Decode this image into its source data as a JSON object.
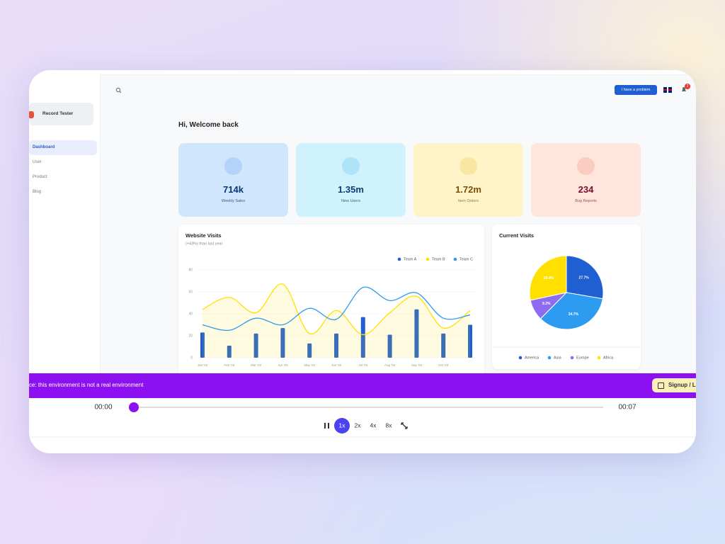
{
  "sidebar": {
    "user": "Record Tester",
    "nav": [
      "Dashboard",
      "User",
      "Product",
      "Blog"
    ]
  },
  "header": {
    "button": "I have a problem",
    "badge": "2"
  },
  "greeting": "Hi, Welcome back",
  "cards": [
    {
      "value": "714k",
      "label": "Weekly Sales"
    },
    {
      "value": "1.35m",
      "label": "New Users"
    },
    {
      "value": "1.72m",
      "label": "Item Orders"
    },
    {
      "value": "234",
      "label": "Bug Reports"
    }
  ],
  "chart_data": [
    {
      "type": "combo",
      "title": "Website Visits",
      "subtitle": "(+43%) than last year",
      "categories": [
        "Jan '03",
        "Feb '03",
        "Mar '03",
        "Apr '03",
        "May '03",
        "Jun '03",
        "Jul '03",
        "Aug '03",
        "Sep '03",
        "Oct '03",
        null
      ],
      "series": [
        {
          "name": "Team A",
          "kind": "bar",
          "color": "#1f5fd1",
          "values": [
            23,
            11,
            22,
            27,
            13,
            22,
            37,
            21,
            44,
            22,
            30
          ]
        },
        {
          "name": "Team B",
          "kind": "area",
          "color": "#ffe000",
          "values": [
            44,
            55,
            41,
            67,
            22,
            43,
            21,
            41,
            56,
            27,
            43
          ]
        },
        {
          "name": "Team C",
          "kind": "line",
          "color": "#2d9bf0",
          "values": [
            30,
            25,
            36,
            30,
            45,
            35,
            64,
            52,
            59,
            36,
            39
          ]
        }
      ],
      "ylim": [
        0,
        80
      ],
      "yticks": [
        0,
        20,
        40,
        60,
        80
      ],
      "grid": true,
      "legend": "top-right"
    },
    {
      "type": "pie",
      "title": "Current Visits",
      "categories": [
        "America",
        "Asia",
        "Europe",
        "Africa"
      ],
      "values": [
        27.7,
        34.7,
        9.2,
        28.4
      ],
      "value_labels": [
        "27.7%",
        "34.7%",
        "9.2%",
        "28.4%"
      ],
      "colors": [
        "#1f5fd1",
        "#2d9bf0",
        "#8e6bf0",
        "#ffe000"
      ],
      "legend": "bottom"
    }
  ],
  "banner": {
    "text": "ce: this environment is not a real environment",
    "button": "Signup / L"
  },
  "player": {
    "start": "00:00",
    "end": "00:07",
    "speeds": [
      "1x",
      "2x",
      "4x",
      "8x"
    ]
  }
}
